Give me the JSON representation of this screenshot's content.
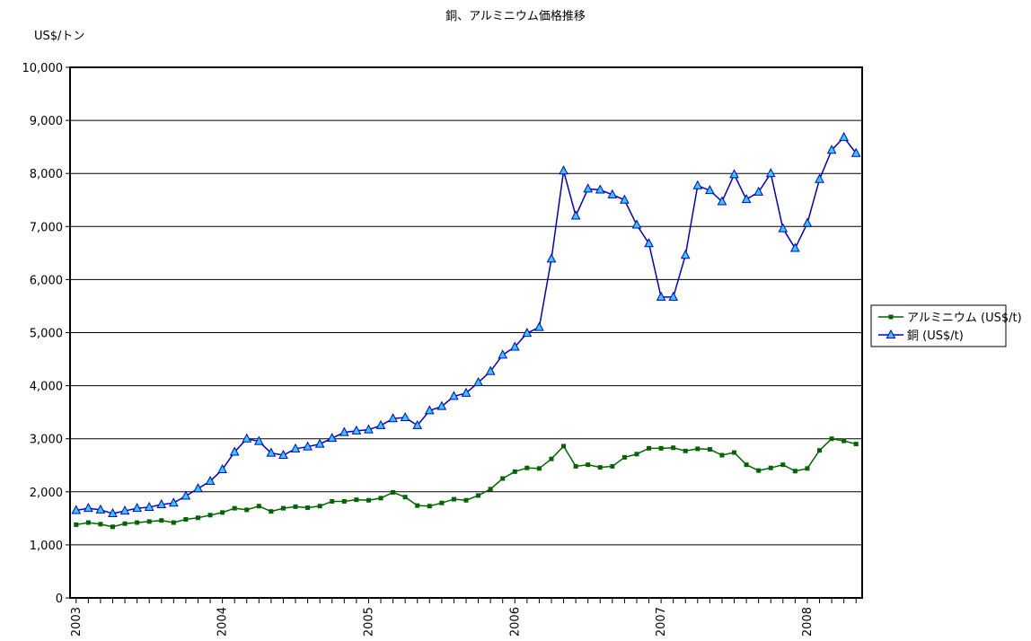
{
  "chart_data": {
    "type": "line",
    "title": "銅、アルミニウム価格推移",
    "y_axis_label": "US$/トン",
    "categories": [
      "2003",
      null,
      null,
      null,
      null,
      null,
      null,
      null,
      null,
      null,
      null,
      null,
      "2004",
      null,
      null,
      null,
      null,
      null,
      null,
      null,
      null,
      null,
      null,
      null,
      "2005",
      null,
      null,
      null,
      null,
      null,
      null,
      null,
      null,
      null,
      null,
      null,
      "2006",
      null,
      null,
      null,
      null,
      null,
      null,
      null,
      null,
      null,
      null,
      null,
      "2007",
      null,
      null,
      null,
      null,
      null,
      null,
      null,
      null,
      null,
      null,
      null,
      "2008",
      null,
      null,
      null,
      null
    ],
    "series": [
      {
        "name": "アルミニウム (US$/t)",
        "color": "#006400",
        "marker": "square",
        "values": [
          1380,
          1420,
          1390,
          1340,
          1400,
          1420,
          1440,
          1460,
          1420,
          1480,
          1510,
          1560,
          1610,
          1690,
          1660,
          1730,
          1630,
          1690,
          1720,
          1700,
          1730,
          1820,
          1820,
          1850,
          1840,
          1880,
          1990,
          1900,
          1740,
          1730,
          1790,
          1860,
          1840,
          1930,
          2050,
          2250,
          2380,
          2450,
          2440,
          2620,
          2860,
          2480,
          2510,
          2460,
          2480,
          2650,
          2710,
          2820,
          2820,
          2830,
          2770,
          2810,
          2800,
          2690,
          2740,
          2510,
          2400,
          2450,
          2510,
          2390,
          2440,
          2780,
          3000,
          2960,
          2900
        ]
      },
      {
        "name": "銅 (US$/t)",
        "color": "#0000cc",
        "marker": "triangle",
        "marker_color": "#33ccff",
        "values": [
          1650,
          1690,
          1660,
          1590,
          1640,
          1690,
          1710,
          1760,
          1790,
          1920,
          2060,
          2200,
          2420,
          2750,
          3000,
          2950,
          2730,
          2690,
          2810,
          2850,
          2900,
          3010,
          3120,
          3150,
          3170,
          3250,
          3380,
          3400,
          3250,
          3530,
          3610,
          3800,
          3860,
          4060,
          4270,
          4580,
          4730,
          4990,
          5100,
          6390,
          8050,
          7200,
          7710,
          7690,
          7600,
          7500,
          7030,
          6680,
          5670,
          5670,
          6460,
          7770,
          7680,
          7470,
          7980,
          7510,
          7650,
          8000,
          6960,
          6590,
          7060,
          7890,
          8440,
          8680,
          8380
        ]
      }
    ],
    "ylim": [
      0,
      10000
    ],
    "yticks": [
      0,
      {
        "value": 1000,
        "label": "1,000"
      },
      {
        "value": 2000,
        "label": "2,000"
      },
      {
        "value": 3000,
        "label": "3,000"
      },
      {
        "value": 4000,
        "label": "4,000"
      },
      {
        "value": 5000,
        "label": "5,000"
      },
      {
        "value": 6000,
        "label": "6,000"
      },
      {
        "value": 7000,
        "label": "7,000"
      },
      {
        "value": 8000,
        "label": "8,000"
      },
      {
        "value": 9000,
        "label": "9,000"
      },
      {
        "value": 10000,
        "label": "10,000"
      }
    ],
    "grid": true,
    "legend": "right"
  }
}
